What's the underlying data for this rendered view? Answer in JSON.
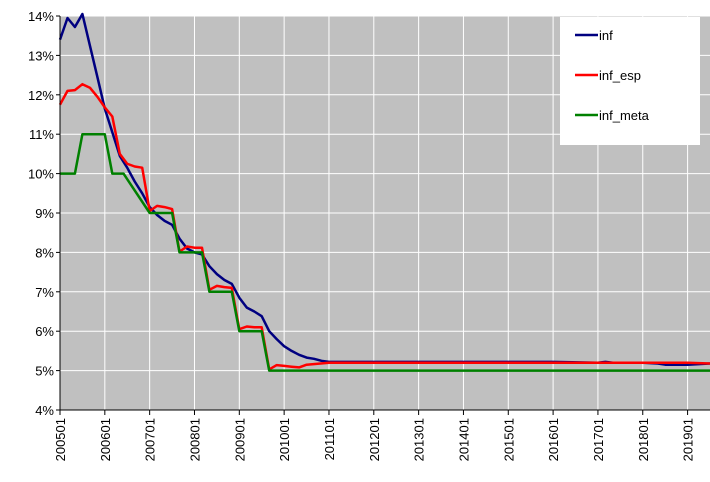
{
  "chart_data": {
    "type": "line",
    "title": "",
    "xlabel": "",
    "ylabel": "",
    "ylim": [
      0.04,
      0.14
    ],
    "y_ticks": [
      "4%",
      "5%",
      "6%",
      "7%",
      "8%",
      "9%",
      "10%",
      "11%",
      "12%",
      "13%",
      "14%"
    ],
    "x_ticks": [
      "200501",
      "200601",
      "200701",
      "200801",
      "200901",
      "201001",
      "201101",
      "201201",
      "201301",
      "201401",
      "201501",
      "201601",
      "201701",
      "201801",
      "201901"
    ],
    "x_range": [
      "200501",
      "201907"
    ],
    "grid": true,
    "background_color": "#c0c0c0",
    "legend_position": "top-right",
    "series": [
      {
        "name": "inf",
        "color": "#000080",
        "points": [
          [
            "200501",
            0.134
          ],
          [
            "200503",
            0.1395
          ],
          [
            "200505",
            0.1372
          ],
          [
            "200507",
            0.1405
          ],
          [
            "200509",
            0.1325
          ],
          [
            "200511",
            0.1245
          ],
          [
            "200601",
            0.1165
          ],
          [
            "200603",
            0.1105
          ],
          [
            "200605",
            0.1045
          ],
          [
            "200607",
            0.1015
          ],
          [
            "200609",
            0.098
          ],
          [
            "200611",
            0.095
          ],
          [
            "200701",
            0.0915
          ],
          [
            "200703",
            0.0895
          ],
          [
            "200705",
            0.088
          ],
          [
            "200707",
            0.087
          ],
          [
            "200709",
            0.0835
          ],
          [
            "200711",
            0.081
          ],
          [
            "200801",
            0.08
          ],
          [
            "200803",
            0.0795
          ],
          [
            "200805",
            0.0765
          ],
          [
            "200807",
            0.0745
          ],
          [
            "200809",
            0.073
          ],
          [
            "200811",
            0.072
          ],
          [
            "200901",
            0.0685
          ],
          [
            "200903",
            0.066
          ],
          [
            "200905",
            0.065
          ],
          [
            "200907",
            0.0638
          ],
          [
            "200909",
            0.06
          ],
          [
            "200911",
            0.058
          ],
          [
            "201001",
            0.0562
          ],
          [
            "201003",
            0.055
          ],
          [
            "201005",
            0.054
          ],
          [
            "201007",
            0.0533
          ],
          [
            "201009",
            0.053
          ],
          [
            "201011",
            0.0525
          ],
          [
            "201101",
            0.0522
          ],
          [
            "201107",
            0.0522
          ],
          [
            "201201",
            0.0522
          ],
          [
            "201301",
            0.0522
          ],
          [
            "201401",
            0.0522
          ],
          [
            "201501",
            0.0522
          ],
          [
            "201601",
            0.0522
          ],
          [
            "201701",
            0.052
          ],
          [
            "201703",
            0.0522
          ],
          [
            "201705",
            0.052
          ],
          [
            "201801",
            0.052
          ],
          [
            "201805",
            0.0518
          ],
          [
            "201807",
            0.0515
          ],
          [
            "201901",
            0.0515
          ],
          [
            "201907",
            0.0518
          ]
        ]
      },
      {
        "name": "inf_esp",
        "color": "#ff0000",
        "points": [
          [
            "200501",
            0.1175
          ],
          [
            "200503",
            0.121
          ],
          [
            "200505",
            0.1212
          ],
          [
            "200507",
            0.1227
          ],
          [
            "200509",
            0.1218
          ],
          [
            "200511",
            0.1195
          ],
          [
            "200601",
            0.1168
          ],
          [
            "200603",
            0.1145
          ],
          [
            "200605",
            0.105
          ],
          [
            "200607",
            0.1025
          ],
          [
            "200609",
            0.1018
          ],
          [
            "200611",
            0.1015
          ],
          [
            "200701",
            0.0905
          ],
          [
            "200703",
            0.0918
          ],
          [
            "200705",
            0.0915
          ],
          [
            "200707",
            0.091
          ],
          [
            "200709",
            0.0802
          ],
          [
            "200711",
            0.0815
          ],
          [
            "200801",
            0.0812
          ],
          [
            "200803",
            0.0812
          ],
          [
            "200805",
            0.0705
          ],
          [
            "200807",
            0.0715
          ],
          [
            "200809",
            0.0712
          ],
          [
            "200811",
            0.071
          ],
          [
            "200901",
            0.0605
          ],
          [
            "200903",
            0.0612
          ],
          [
            "200905",
            0.061
          ],
          [
            "200907",
            0.061
          ],
          [
            "200909",
            0.0503
          ],
          [
            "200911",
            0.0514
          ],
          [
            "201001",
            0.0512
          ],
          [
            "201003",
            0.051
          ],
          [
            "201005",
            0.0508
          ],
          [
            "201007",
            0.0515
          ],
          [
            "201101",
            0.052
          ],
          [
            "201201",
            0.052
          ],
          [
            "201301",
            0.052
          ],
          [
            "201401",
            0.052
          ],
          [
            "201501",
            0.052
          ],
          [
            "201601",
            0.052
          ],
          [
            "201701",
            0.052
          ],
          [
            "201801",
            0.052
          ],
          [
            "201901",
            0.052
          ],
          [
            "201907",
            0.0518
          ]
        ]
      },
      {
        "name": "inf_meta",
        "color": "#008000",
        "points": [
          [
            "200501",
            0.1
          ],
          [
            "200505",
            0.1
          ],
          [
            "200507",
            0.11
          ],
          [
            "200601",
            0.11
          ],
          [
            "200603",
            0.1
          ],
          [
            "200606",
            0.1
          ],
          [
            "200701",
            0.09
          ],
          [
            "200707",
            0.09
          ],
          [
            "200709",
            0.08
          ],
          [
            "200803",
            0.08
          ],
          [
            "200805",
            0.07
          ],
          [
            "200811",
            0.07
          ],
          [
            "200901",
            0.06
          ],
          [
            "200907",
            0.06
          ],
          [
            "200909",
            0.05
          ],
          [
            "201001",
            0.05
          ],
          [
            "201907",
            0.05
          ]
        ]
      }
    ]
  }
}
